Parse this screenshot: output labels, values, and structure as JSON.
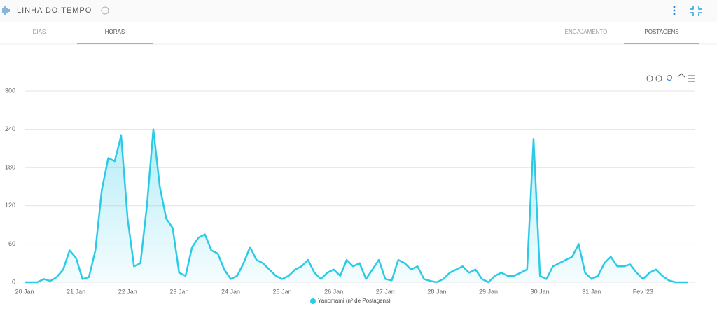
{
  "header": {
    "title": "LINHA DO TEMPO"
  },
  "tabs": {
    "left": [
      "DIAS",
      "HORAS"
    ],
    "right": [
      "ENGAJAMENTO",
      "POSTAGENS"
    ]
  },
  "chart_data": {
    "type": "area",
    "categories": [
      "20 Jan",
      null,
      null,
      null,
      null,
      null,
      null,
      null,
      "21 Jan",
      null,
      null,
      null,
      null,
      null,
      null,
      null,
      "22 Jan",
      null,
      null,
      null,
      null,
      null,
      null,
      null,
      "23 Jan",
      null,
      null,
      null,
      null,
      null,
      null,
      null,
      "24 Jan",
      null,
      null,
      null,
      null,
      null,
      null,
      null,
      "25 Jan",
      null,
      null,
      null,
      null,
      null,
      null,
      null,
      "26 Jan",
      null,
      null,
      null,
      null,
      null,
      null,
      null,
      "27 Jan",
      null,
      null,
      null,
      null,
      null,
      null,
      null,
      "28 Jan",
      null,
      null,
      null,
      null,
      null,
      null,
      null,
      "29 Jan",
      null,
      null,
      null,
      null,
      null,
      null,
      null,
      "30 Jan",
      null,
      null,
      null,
      null,
      null,
      null,
      null,
      "31 Jan",
      null,
      null,
      null,
      null,
      null,
      null,
      null,
      "Fev '23",
      null,
      null,
      null,
      null,
      null,
      null,
      null
    ],
    "series": [
      {
        "name": "Yanomami (nº de Postagens)",
        "color": "#2bcbe8",
        "values": [
          0,
          0,
          0,
          5,
          2,
          8,
          20,
          50,
          38,
          5,
          8,
          50,
          145,
          195,
          190,
          230,
          100,
          25,
          30,
          120,
          240,
          150,
          100,
          85,
          15,
          10,
          55,
          70,
          75,
          50,
          45,
          20,
          5,
          10,
          30,
          55,
          35,
          30,
          20,
          10,
          5,
          10,
          20,
          25,
          35,
          15,
          5,
          15,
          20,
          10,
          35,
          25,
          30,
          5,
          20,
          35,
          5,
          3,
          35,
          30,
          20,
          25,
          5,
          2,
          0,
          5,
          15,
          20,
          25,
          15,
          20,
          5,
          0,
          10,
          15,
          10,
          10,
          15,
          20,
          225,
          10,
          5,
          25,
          30,
          35,
          40,
          60,
          15,
          5,
          10,
          30,
          40,
          25,
          25,
          28,
          15,
          5,
          15,
          20,
          10,
          3,
          0,
          0,
          0
        ]
      }
    ],
    "ylim": [
      0,
      300
    ],
    "yticks": [
      0,
      60,
      120,
      180,
      240,
      300
    ],
    "grid": true,
    "legend": "bottom"
  }
}
